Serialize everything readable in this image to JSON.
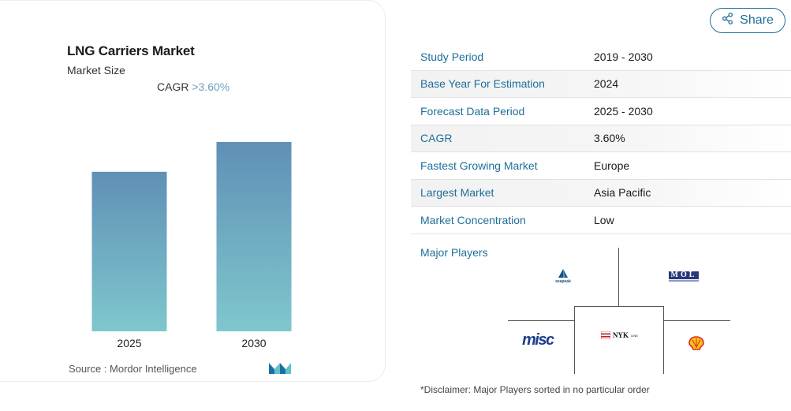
{
  "card": {
    "title": "LNG Carriers Market",
    "subtitle": "Market Size",
    "cagr_label": "CAGR",
    "cagr_value": ">3.60%",
    "source": "Source :  Mordor Intelligence"
  },
  "chart_data": {
    "type": "bar",
    "categories": [
      "2025",
      "2030"
    ],
    "values": [
      1.0,
      1.187
    ],
    "title": "LNG Carriers Market",
    "subtitle": "Market Size",
    "xlabel": "",
    "ylabel": "",
    "grid": false,
    "note": "",
    "gradient_top": "#6090b6",
    "gradient_bottom": "#7fc7cd"
  },
  "share": {
    "label": "Share",
    "icon": "share-icon",
    "color": "#1f6e9a"
  },
  "info": {
    "rows": [
      {
        "key": "Study Period",
        "value": "2019 - 2030"
      },
      {
        "key": "Base Year For Estimation",
        "value": "2024"
      },
      {
        "key": "Forecast Data Period",
        "value": "2025 - 2030"
      },
      {
        "key": "CAGR",
        "value": "3.60%"
      },
      {
        "key": "Fastest Growing Market",
        "value": "Europe"
      },
      {
        "key": "Largest Market",
        "value": "Asia Pacific"
      },
      {
        "key": "Market Concentration",
        "value": "Low"
      }
    ],
    "players_label": "Major Players",
    "players": {
      "seapeak": "seapeak",
      "mol": "MOL",
      "misc": "misc",
      "nyk": "NYK",
      "shell": "shell"
    },
    "disclaimer": "*Disclaimer: Major Players sorted in no particular order"
  },
  "colors": {
    "accent": "#1f6e9a",
    "cagr": "#6ea2c0"
  }
}
